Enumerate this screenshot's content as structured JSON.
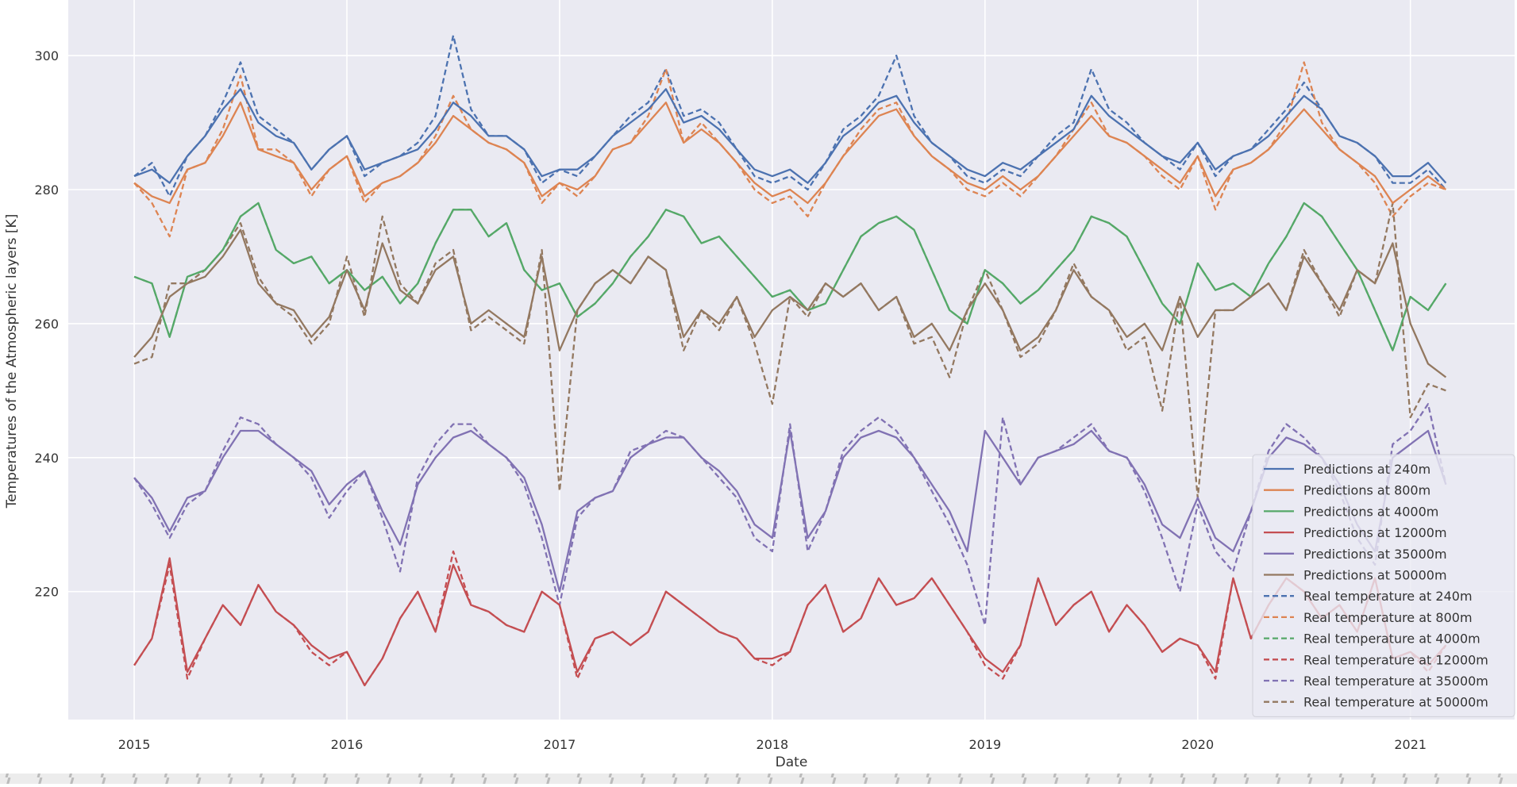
{
  "chart_data": {
    "type": "line",
    "title": "",
    "xlabel": "Date",
    "ylabel": "Temperatures of the Atmospheric layers [K]",
    "xlim": [
      2014.69,
      2021.49
    ],
    "ylim": [
      200.9,
      308.3
    ],
    "x_ticks": [
      "2015",
      "2016",
      "2017",
      "2018",
      "2019",
      "2020",
      "2021"
    ],
    "y_ticks": [
      220,
      240,
      260,
      280,
      300
    ],
    "grid": true,
    "legend_placement": "lower-right",
    "x_start": "2015-01",
    "x_step": "1 month",
    "series": [
      {
        "name": "Predictions at 240m",
        "color": "#4c72b0",
        "style": "solid",
        "values": [
          282,
          283,
          281,
          285,
          288,
          292,
          295,
          290,
          288,
          287,
          283,
          286,
          288,
          283,
          284,
          285,
          286,
          289,
          293,
          291,
          288,
          288,
          286,
          282,
          283,
          283,
          285,
          288,
          290,
          292,
          295,
          290,
          291,
          289,
          286,
          283,
          282,
          283,
          281,
          284,
          288,
          290,
          293,
          294,
          290,
          287,
          285,
          283,
          282,
          284,
          283,
          285,
          287,
          289,
          294,
          291,
          289,
          287,
          285,
          284,
          287,
          283,
          285,
          286,
          288,
          291,
          294,
          292,
          288,
          287,
          285,
          282,
          282,
          284,
          281
        ]
      },
      {
        "name": "Predictions at 800m",
        "color": "#dd8452",
        "style": "solid",
        "values": [
          281,
          279,
          278,
          283,
          284,
          288,
          293,
          286,
          285,
          284,
          280,
          283,
          285,
          279,
          281,
          282,
          284,
          287,
          291,
          289,
          287,
          286,
          284,
          279,
          281,
          280,
          282,
          286,
          287,
          290,
          293,
          287,
          289,
          287,
          284,
          281,
          279,
          280,
          278,
          281,
          285,
          288,
          291,
          292,
          288,
          285,
          283,
          281,
          280,
          282,
          280,
          282,
          285,
          288,
          291,
          288,
          287,
          285,
          283,
          281,
          285,
          279,
          283,
          284,
          286,
          289,
          292,
          289,
          286,
          284,
          282,
          278,
          280,
          282,
          280
        ]
      },
      {
        "name": "Predictions at 4000m",
        "color": "#55a868",
        "style": "solid",
        "values": [
          267,
          266,
          258,
          267,
          268,
          271,
          276,
          278,
          271,
          269,
          270,
          266,
          268,
          265,
          267,
          263,
          266,
          272,
          277,
          277,
          273,
          275,
          268,
          265,
          266,
          261,
          263,
          266,
          270,
          273,
          277,
          276,
          272,
          273,
          270,
          267,
          264,
          265,
          262,
          263,
          268,
          273,
          275,
          276,
          274,
          268,
          262,
          260,
          268,
          266,
          263,
          265,
          268,
          271,
          276,
          275,
          273,
          268,
          263,
          260,
          269,
          265,
          266,
          264,
          269,
          273,
          278,
          276,
          272,
          268,
          262,
          256,
          264,
          262,
          266
        ]
      },
      {
        "name": "Predictions at 12000m",
        "color": "#c44e52",
        "style": "solid",
        "values": [
          209,
          213,
          225,
          208,
          213,
          218,
          215,
          221,
          217,
          215,
          212,
          210,
          211,
          206,
          210,
          216,
          220,
          214,
          224,
          218,
          217,
          215,
          214,
          220,
          218,
          208,
          213,
          214,
          212,
          214,
          220,
          218,
          216,
          214,
          213,
          210,
          210,
          211,
          218,
          221,
          214,
          216,
          222,
          218,
          219,
          222,
          218,
          214,
          210,
          208,
          212,
          222,
          215,
          218,
          220,
          214,
          218,
          215,
          211,
          213,
          212,
          208,
          222,
          213,
          218,
          222,
          220,
          216,
          218,
          214,
          222,
          210,
          211,
          209,
          212
        ]
      },
      {
        "name": "Predictions at 35000m",
        "color": "#8172b3",
        "style": "solid",
        "values": [
          237,
          234,
          229,
          234,
          235,
          240,
          244,
          244,
          242,
          240,
          238,
          233,
          236,
          238,
          232,
          227,
          236,
          240,
          243,
          244,
          242,
          240,
          237,
          230,
          220,
          232,
          234,
          235,
          240,
          242,
          243,
          243,
          240,
          238,
          235,
          230,
          228,
          244,
          228,
          232,
          240,
          243,
          244,
          243,
          240,
          236,
          232,
          226,
          244,
          240,
          236,
          240,
          241,
          242,
          244,
          241,
          240,
          236,
          230,
          228,
          234,
          228,
          226,
          232,
          240,
          243,
          242,
          240,
          236,
          230,
          226,
          240,
          242,
          244,
          236
        ]
      },
      {
        "name": "Predictions at 50000m",
        "color": "#937860",
        "style": "solid",
        "values": [
          255,
          258,
          264,
          266,
          267,
          270,
          274,
          266,
          263,
          262,
          258,
          261,
          268,
          262,
          272,
          265,
          263,
          268,
          270,
          260,
          262,
          260,
          258,
          270,
          256,
          262,
          266,
          268,
          266,
          270,
          268,
          258,
          262,
          260,
          264,
          258,
          262,
          264,
          262,
          266,
          264,
          266,
          262,
          264,
          258,
          260,
          256,
          262,
          266,
          262,
          256,
          258,
          262,
          268,
          264,
          262,
          258,
          260,
          256,
          264,
          258,
          262,
          262,
          264,
          266,
          262,
          270,
          266,
          262,
          268,
          266,
          272,
          260,
          254,
          252
        ]
      },
      {
        "name": "Real temperature at 240m",
        "color": "#4c72b0",
        "style": "dashed",
        "values": [
          282,
          284,
          279,
          285,
          288,
          293,
          299,
          291,
          289,
          287,
          283,
          286,
          288,
          282,
          284,
          285,
          287,
          291,
          303,
          292,
          288,
          288,
          286,
          281,
          283,
          282,
          285,
          288,
          291,
          293,
          298,
          291,
          292,
          290,
          286,
          282,
          281,
          282,
          280,
          284,
          289,
          291,
          294,
          300,
          291,
          287,
          285,
          282,
          281,
          283,
          282,
          285,
          288,
          290,
          298,
          292,
          290,
          287,
          285,
          283,
          287,
          282,
          285,
          286,
          289,
          292,
          296,
          292,
          288,
          287,
          285,
          281,
          281,
          283,
          280
        ]
      },
      {
        "name": "Real temperature at 800m",
        "color": "#dd8452",
        "style": "dashed",
        "values": [
          281,
          278,
          273,
          283,
          284,
          289,
          297,
          286,
          286,
          284,
          279,
          283,
          285,
          278,
          281,
          282,
          284,
          288,
          294,
          289,
          287,
          286,
          284,
          278,
          281,
          279,
          282,
          286,
          287,
          291,
          298,
          287,
          290,
          287,
          284,
          280,
          278,
          279,
          276,
          281,
          285,
          289,
          292,
          293,
          288,
          285,
          283,
          280,
          279,
          281,
          279,
          282,
          285,
          289,
          293,
          288,
          287,
          285,
          282,
          280,
          285,
          277,
          283,
          284,
          286,
          290,
          299,
          290,
          286,
          284,
          281,
          276,
          279,
          281,
          280
        ]
      },
      {
        "name": "Real temperature at 4000m",
        "color": "#55a868",
        "style": "dashed",
        "values": [
          267,
          266,
          258,
          267,
          268,
          271,
          276,
          278,
          271,
          269,
          270,
          266,
          268,
          265,
          267,
          263,
          266,
          272,
          277,
          277,
          273,
          275,
          268,
          265,
          266,
          261,
          263,
          266,
          270,
          273,
          277,
          276,
          272,
          273,
          270,
          267,
          264,
          265,
          262,
          263,
          268,
          273,
          275,
          276,
          274,
          268,
          262,
          260,
          268,
          266,
          263,
          265,
          268,
          271,
          276,
          275,
          273,
          268,
          263,
          260,
          269,
          265,
          266,
          264,
          269,
          273,
          278,
          276,
          272,
          268,
          262,
          256,
          264,
          262,
          266
        ]
      },
      {
        "name": "Real temperature at 12000m",
        "color": "#c44e52",
        "style": "dashed",
        "values": [
          209,
          213,
          224,
          207,
          213,
          218,
          215,
          221,
          217,
          215,
          211,
          209,
          211,
          206,
          210,
          216,
          220,
          214,
          226,
          218,
          217,
          215,
          214,
          220,
          218,
          207,
          213,
          214,
          212,
          214,
          220,
          218,
          216,
          214,
          213,
          210,
          209,
          211,
          218,
          221,
          214,
          216,
          222,
          218,
          219,
          222,
          218,
          214,
          209,
          207,
          212,
          222,
          215,
          218,
          220,
          214,
          218,
          215,
          211,
          213,
          212,
          207,
          222,
          213,
          218,
          222,
          220,
          216,
          218,
          214,
          222,
          210,
          211,
          208,
          212
        ]
      },
      {
        "name": "Real temperature at 35000m",
        "color": "#8172b3",
        "style": "dashed",
        "values": [
          237,
          233,
          228,
          233,
          235,
          241,
          246,
          245,
          242,
          240,
          237,
          231,
          235,
          238,
          231,
          223,
          237,
          242,
          245,
          245,
          242,
          240,
          236,
          228,
          218,
          231,
          234,
          235,
          241,
          242,
          244,
          243,
          240,
          237,
          234,
          228,
          226,
          245,
          226,
          232,
          241,
          244,
          246,
          244,
          240,
          235,
          230,
          224,
          215,
          246,
          236,
          240,
          241,
          243,
          245,
          241,
          240,
          235,
          228,
          220,
          233,
          226,
          223,
          232,
          241,
          245,
          243,
          240,
          235,
          228,
          224,
          242,
          244,
          248,
          236
        ]
      },
      {
        "name": "Real temperature at 50000m",
        "color": "#937860",
        "style": "dashed",
        "values": [
          254,
          255,
          266,
          266,
          268,
          271,
          275,
          267,
          263,
          261,
          257,
          260,
          270,
          261,
          276,
          266,
          263,
          269,
          271,
          259,
          261,
          259,
          257,
          271,
          235,
          262,
          266,
          268,
          266,
          270,
          268,
          256,
          262,
          259,
          264,
          257,
          248,
          264,
          261,
          266,
          264,
          266,
          262,
          264,
          257,
          258,
          252,
          262,
          268,
          262,
          255,
          257,
          262,
          269,
          264,
          262,
          256,
          258,
          247,
          264,
          234,
          262,
          262,
          264,
          266,
          262,
          271,
          266,
          261,
          268,
          266,
          278,
          246,
          251,
          250
        ]
      }
    ]
  }
}
